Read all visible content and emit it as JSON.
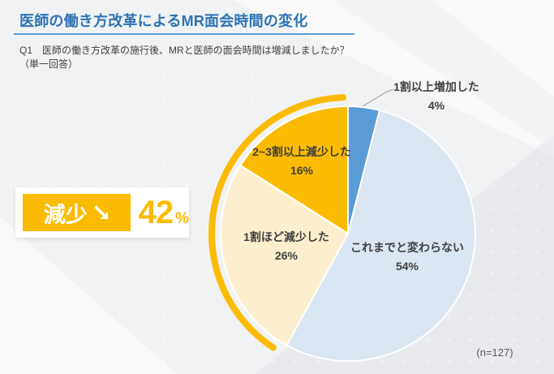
{
  "header": {
    "title": "医師の働き方改革によるMR面会時間の変化",
    "question_line1": "Q1　医師の働き方改革の施行後、MRと医師の面会時間は増減しましたか？",
    "question_line2": "（単一回答）"
  },
  "highlight": {
    "label": "減少",
    "arrow": "↘",
    "value": "42",
    "unit": "%",
    "color": "#fbbb00"
  },
  "footer": {
    "sample_size": "(n=127)"
  },
  "colors": {
    "title_blue": "#2d73b5",
    "rule_blue": "#5b9bd5",
    "label_gray": "#3f3f3f",
    "accent_orange": "#fbbb00"
  },
  "chart_data": {
    "type": "pie",
    "title": "医師の働き方改革によるMR面会時間の変化",
    "question": "Q1 医師の働き方改革の施行後、MRと医師の面会時間は増減しましたか？（単一回答）",
    "sample_size": 127,
    "unit": "%",
    "start_angle_deg": 0,
    "direction": "clockwise",
    "categories": [
      "1割以上増加した",
      "これまでと変わらない",
      "1割ほど減少した",
      "2~3割以上減少した"
    ],
    "values": [
      4,
      54,
      26,
      16
    ],
    "segments": [
      {
        "label": "1割以上増加した",
        "pct": 4,
        "pct_label": "4%",
        "color": "#5b9bd5"
      },
      {
        "label": "これまでと変わらない",
        "pct": 54,
        "pct_label": "54%",
        "color": "#dbe6f3"
      },
      {
        "label": "1割ほど減少した",
        "pct": 26,
        "pct_label": "26%",
        "color": "#fcefcd"
      },
      {
        "label": "2~3割以上減少した",
        "pct": 16,
        "pct_label": "16%",
        "color": "#fbbb00"
      }
    ],
    "highlight_arc": {
      "covers": [
        "1割ほど減少した",
        "2~3割以上減少した"
      ],
      "total_pct": 42,
      "label": "減少 42%",
      "color": "#fbbb00"
    }
  }
}
